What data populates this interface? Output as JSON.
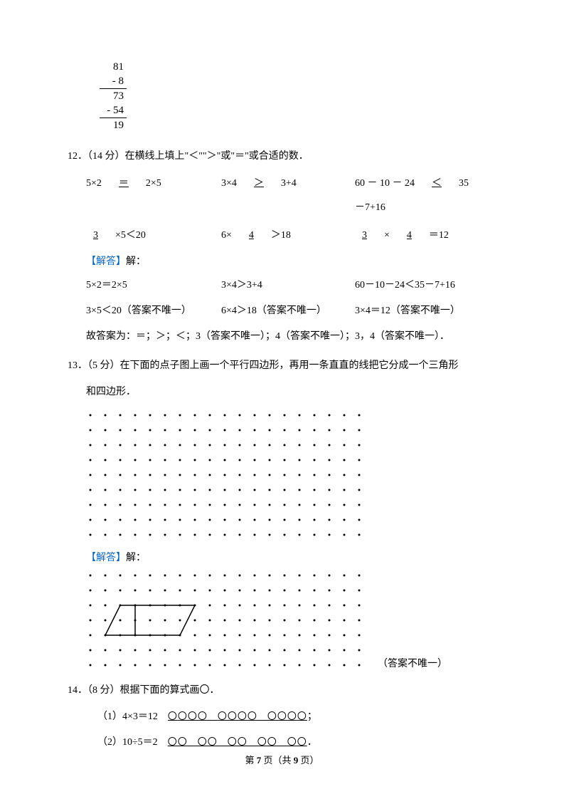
{
  "subtraction": {
    "l1": "81",
    "l2": "- 8",
    "l3": "73",
    "l4": "- 54",
    "l5": "19"
  },
  "q12": {
    "header": "12．（14 分）在横线上填上\"＜\"\"＞\"或\"＝\"或合适的数．",
    "row1": {
      "a": "5×2　<span class='ul'>＝</span>　2×5",
      "b": "3×4　<span class='ul'>＞</span>　3+4",
      "c": "60 － 10 － 24　<span class='ul'>＜</span>　35 －7+16"
    },
    "row2": {
      "a": "<span class='ul'>3</span>　×5＜20",
      "b": "6×　<span class='ul'>4</span>　＞18",
      "c": "<span class='ul'>3</span>　×　<span class='ul'>4</span>　＝12"
    },
    "answer_label": "【解答】",
    "answer_text": "解：",
    "ans_row1": {
      "a": "5×2＝2×5",
      "b": "3×4＞3+4",
      "c": "60－10－24＜35－7+16"
    },
    "ans_row2": {
      "a": "3×5＜20（答案不唯一）",
      "b": "6×4＞18（答案不唯一）",
      "c": "3×4＝12（答案不唯一）"
    },
    "summary": "故答案为：＝；＞；＜；3（答案不唯一）；4（答案不唯一）；3，4（答案不唯一）．"
  },
  "q13": {
    "header": "13．（5 分）在下面的点子图上画一个平行四边形，再用一条直直的线把它分成一个三角形",
    "header2": "和四边形．",
    "answer_label": "【解答】",
    "answer_text": "解：",
    "note": "（答案不唯一）",
    "grid1": {
      "rows": 9,
      "cols": 19,
      "spacing": 21,
      "r": 1.5
    },
    "grid2": {
      "rows": 7,
      "cols": 19,
      "spacing": 21,
      "r": 1.5
    }
  },
  "q14": {
    "header": "14．（8 分）根据下面的算式画〇．",
    "line1_pre": "（1）4×3＝12　",
    "line1_circ": "〇〇〇〇　〇〇〇〇　〇〇〇〇",
    "line1_post": "；",
    "line2_pre": "（2）10÷5＝2　",
    "line2_circ": "〇〇　〇〇　〇〇　〇〇　〇〇",
    "line2_post": "．"
  },
  "footer": {
    "pre": "第 ",
    "cur": "7",
    "mid": " 页（共 ",
    "total": "9",
    "post": " 页）"
  }
}
